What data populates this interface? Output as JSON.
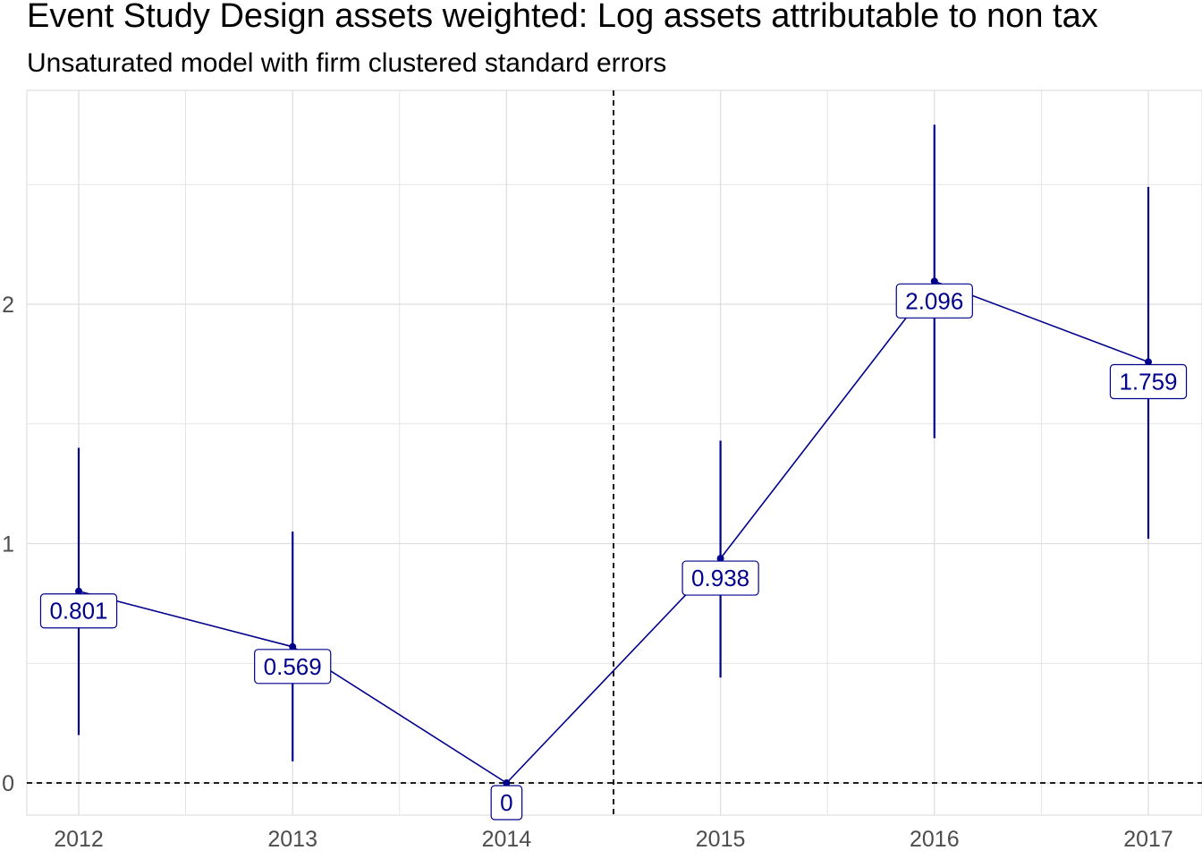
{
  "chart_data": {
    "type": "line",
    "title": "Event Study Design assets weighted: Log assets attributable to non tax",
    "subtitle": "Unsaturated model with firm clustered standard errors",
    "xlabel": "",
    "ylabel": "",
    "categories": [
      "2012",
      "2013",
      "2014",
      "2015",
      "2016",
      "2017"
    ],
    "series": [
      {
        "values": [
          0.801,
          0.569,
          0,
          0.938,
          2.096,
          1.759
        ],
        "labels": [
          "0.801",
          "0.569",
          "0",
          "0.938",
          "2.096",
          "1.759"
        ],
        "ci_lower": [
          0.2,
          0.09,
          0,
          0.44,
          1.44,
          1.02
        ],
        "ci_upper": [
          1.4,
          1.05,
          0,
          1.43,
          2.75,
          2.49
        ]
      }
    ],
    "y_ticks": [
      "0",
      "1",
      "2"
    ],
    "y_tick_values": [
      0,
      1,
      2
    ],
    "ylim": [
      -0.14,
      2.87
    ],
    "reference_lines": {
      "horizontal_y": 0,
      "vertical_between": [
        "2014",
        "2015"
      ]
    },
    "grid": true,
    "colors": {
      "series": "#00008b",
      "grid": "#dedede",
      "reference": "#000000"
    }
  }
}
